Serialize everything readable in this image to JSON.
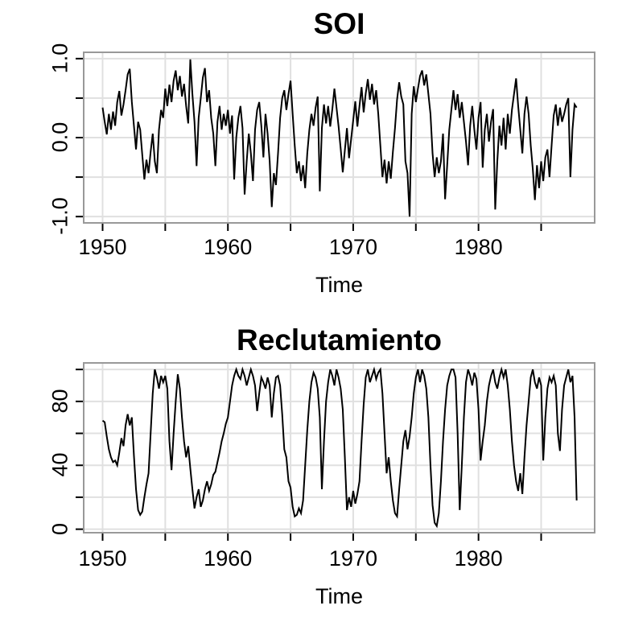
{
  "page": {
    "background": "#ffffff"
  },
  "chart_data": [
    {
      "type": "line",
      "title": "SOI",
      "xlabel": "Time",
      "x_unit": "year",
      "x_start": 1950.0,
      "x_step": 0.166667,
      "xlim": [
        1948.49,
        1989.27
      ],
      "ylim": [
        -1.08,
        1.08
      ],
      "grid": true,
      "x_ticks_minor": [
        1950,
        1955,
        1960,
        1965,
        1970,
        1975,
        1980,
        1985
      ],
      "x_ticks_labeled": [
        {
          "v": 1950,
          "label": "1950"
        },
        {
          "v": 1960,
          "label": "1960"
        },
        {
          "v": 1970,
          "label": "1970"
        },
        {
          "v": 1980,
          "label": "1980"
        }
      ],
      "y_ticks_minor": [
        -1.0,
        -0.5,
        0.0,
        0.5,
        1.0
      ],
      "y_ticks_labeled": [
        {
          "v": -1.0,
          "label": "-1.0"
        },
        {
          "v": 0.0,
          "label": "0.0"
        },
        {
          "v": 1.0,
          "label": "1.0"
        }
      ],
      "colors": {
        "line": "#000000",
        "grid": "#e0e0e0",
        "box": "#999999",
        "text": "#000000",
        "tick": "#000000"
      },
      "values": [
        0.38,
        0.2,
        0.04,
        0.3,
        0.1,
        0.33,
        0.15,
        0.45,
        0.59,
        0.28,
        0.42,
        0.6,
        0.8,
        0.87,
        0.45,
        0.15,
        -0.15,
        0.2,
        0.1,
        -0.22,
        -0.53,
        -0.28,
        -0.45,
        -0.18,
        0.05,
        -0.3,
        -0.45,
        0.1,
        0.35,
        0.25,
        0.62,
        0.4,
        0.67,
        0.45,
        0.72,
        0.85,
        0.6,
        0.78,
        0.52,
        0.68,
        0.4,
        0.18,
        0.99,
        0.55,
        0.2,
        -0.36,
        0.25,
        0.5,
        0.76,
        0.88,
        0.45,
        0.6,
        0.25,
        0.05,
        -0.36,
        0.2,
        0.4,
        0.1,
        0.3,
        0.15,
        0.35,
        0.05,
        0.28,
        -0.53,
        0.0,
        0.25,
        0.4,
        0.12,
        -0.72,
        -0.3,
        0.05,
        -0.2,
        -0.55,
        0.1,
        0.35,
        0.45,
        0.15,
        -0.25,
        0.3,
        0.05,
        -0.3,
        -0.88,
        -0.45,
        -0.6,
        -0.2,
        0.25,
        0.5,
        0.6,
        0.35,
        0.55,
        0.72,
        0.3,
        -0.1,
        -0.45,
        -0.3,
        -0.55,
        -0.35,
        -0.64,
        -0.2,
        0.1,
        0.3,
        0.15,
        0.38,
        0.52,
        -0.68,
        0.12,
        0.42,
        0.18,
        0.4,
        0.14,
        0.36,
        0.62,
        0.38,
        0.14,
        -0.14,
        -0.44,
        -0.16,
        0.12,
        -0.26,
        -0.02,
        0.22,
        0.46,
        0.14,
        0.4,
        0.64,
        0.32,
        0.56,
        0.74,
        0.48,
        0.68,
        0.42,
        0.6,
        0.3,
        -0.1,
        -0.5,
        -0.28,
        -0.58,
        -0.3,
        -0.52,
        -0.18,
        0.12,
        0.48,
        0.7,
        0.52,
        0.42,
        -0.3,
        -0.45,
        -1.0,
        0.3,
        0.65,
        0.45,
        0.62,
        0.78,
        0.85,
        0.66,
        0.8,
        0.55,
        0.3,
        -0.2,
        -0.5,
        -0.25,
        -0.45,
        -0.3,
        0.05,
        -0.78,
        -0.35,
        0.1,
        0.35,
        0.6,
        0.35,
        0.55,
        0.25,
        0.45,
        0.2,
        -0.05,
        -0.35,
        0.15,
        0.4,
        0.1,
        -0.15,
        0.25,
        0.45,
        -0.38,
        0.1,
        0.3,
        -0.05,
        0.2,
        0.36,
        -0.91,
        -0.3,
        0.15,
        -0.1,
        0.25,
        -0.15,
        0.3,
        0.05,
        0.35,
        0.55,
        0.75,
        0.4,
        0.1,
        -0.2,
        0.3,
        0.52,
        0.3,
        -0.1,
        -0.4,
        -0.79,
        -0.35,
        -0.64,
        -0.3,
        -0.55,
        -0.25,
        -0.15,
        -0.5,
        -0.1,
        0.28,
        0.42,
        0.15,
        0.38,
        0.2,
        0.3,
        0.42,
        0.5,
        -0.5,
        0.1,
        0.42,
        0.38
      ]
    },
    {
      "type": "line",
      "title": "Reclutamiento",
      "xlabel": "Time",
      "x_unit": "year",
      "x_start": 1950.0,
      "x_step": 0.166667,
      "xlim": [
        1948.49,
        1989.27
      ],
      "ylim": [
        -2.2,
        104.1
      ],
      "grid": true,
      "x_ticks_minor": [
        1950,
        1955,
        1960,
        1965,
        1970,
        1975,
        1980,
        1985
      ],
      "x_ticks_labeled": [
        {
          "v": 1950,
          "label": "1950"
        },
        {
          "v": 1960,
          "label": "1960"
        },
        {
          "v": 1970,
          "label": "1970"
        },
        {
          "v": 1980,
          "label": "1980"
        }
      ],
      "y_ticks_minor": [
        0,
        20,
        40,
        60,
        80,
        100
      ],
      "y_ticks_labeled": [
        {
          "v": 0,
          "label": "0"
        },
        {
          "v": 40,
          "label": "40"
        },
        {
          "v": 80,
          "label": "80"
        }
      ],
      "colors": {
        "line": "#000000",
        "grid": "#e0e0e0",
        "box": "#999999",
        "text": "#000000",
        "tick": "#000000"
      },
      "values": [
        68,
        67,
        58,
        50,
        45,
        42,
        43,
        40,
        48,
        57,
        52,
        65,
        72,
        65,
        70,
        46,
        25,
        12,
        9,
        11,
        20,
        28,
        35,
        60,
        85,
        100,
        95,
        88,
        96,
        92,
        96,
        88,
        55,
        37,
        60,
        80,
        97,
        88,
        70,
        55,
        45,
        52,
        38,
        25,
        13,
        20,
        25,
        14,
        18,
        25,
        30,
        24,
        28,
        34,
        36,
        42,
        48,
        55,
        60,
        66,
        70,
        80,
        90,
        96,
        100,
        96,
        94,
        100,
        96,
        90,
        95,
        100,
        96,
        90,
        74,
        85,
        95,
        92,
        88,
        95,
        90,
        70,
        85,
        95,
        96,
        90,
        72,
        50,
        45,
        30,
        26,
        14,
        8,
        9,
        13,
        10,
        18,
        40,
        62,
        80,
        92,
        98,
        95,
        88,
        70,
        25,
        55,
        80,
        92,
        100,
        96,
        90,
        100,
        95,
        88,
        75,
        45,
        12,
        20,
        14,
        24,
        16,
        22,
        30,
        55,
        78,
        95,
        100,
        92,
        96,
        100,
        94,
        98,
        100,
        85,
        60,
        35,
        45,
        30,
        18,
        10,
        8,
        25,
        40,
        55,
        62,
        50,
        58,
        70,
        85,
        95,
        100,
        92,
        100,
        96,
        88,
        70,
        40,
        15,
        4,
        2,
        10,
        30,
        55,
        75,
        90,
        96,
        100,
        100,
        95,
        60,
        12,
        40,
        70,
        92,
        100,
        96,
        90,
        98,
        94,
        75,
        43,
        55,
        65,
        80,
        90,
        96,
        100,
        92,
        88,
        95,
        100,
        95,
        100,
        90,
        75,
        55,
        40,
        30,
        24,
        35,
        22,
        45,
        65,
        80,
        95,
        100,
        92,
        88,
        95,
        90,
        43,
        70,
        88,
        95,
        92,
        96,
        90,
        60,
        49,
        75,
        90,
        95,
        100,
        92,
        96,
        70,
        18
      ]
    }
  ]
}
